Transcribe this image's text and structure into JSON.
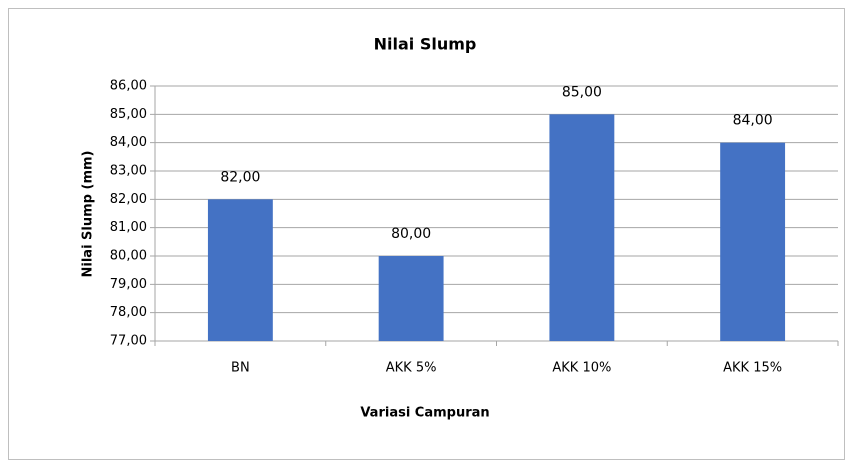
{
  "chart_data": {
    "type": "bar",
    "title": "Nilai Slump",
    "x_label": "Variasi Campuran",
    "y_label": "Nilai Slump (mm)",
    "categories": [
      "BN",
      "AKK 5%",
      "AKK 10%",
      "AKK 15%"
    ],
    "values": [
      82,
      80,
      85,
      84
    ],
    "value_labels": [
      "82,00",
      "80,00",
      "85,00",
      "84,00"
    ],
    "color": "#4472c4",
    "ylim": [
      77,
      86
    ],
    "yticks": [
      {
        "value": 77,
        "label": "77,00"
      },
      {
        "value": 78,
        "label": "78,00"
      },
      {
        "value": 79,
        "label": "79,00"
      },
      {
        "value": 80,
        "label": "80,00"
      },
      {
        "value": 81,
        "label": "81,00"
      },
      {
        "value": 82,
        "label": "82,00"
      },
      {
        "value": 83,
        "label": "83,00"
      },
      {
        "value": 84,
        "label": "84,00"
      },
      {
        "value": 85,
        "label": "85,00"
      },
      {
        "value": 86,
        "label": "86,00"
      }
    ],
    "grid": true
  }
}
